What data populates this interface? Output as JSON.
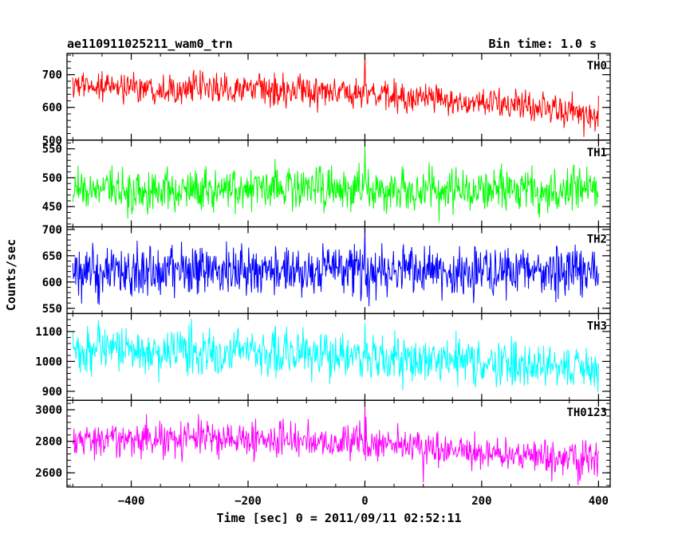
{
  "chart_data": {
    "type": "line",
    "title": "ae110911025211_wam0_trn",
    "bin_label": "Bin time: 1.0 s",
    "xlabel": "Time [sec] 0 = 2011/09/11 02:52:11",
    "ylabel": "Counts/sec",
    "xlim": [
      -510,
      420
    ],
    "xticks": [
      -400,
      -200,
      0,
      200,
      400
    ],
    "x_range": [
      -500,
      400
    ],
    "x_step": 1,
    "panels": [
      {
        "name": "TH0",
        "color": "#ff0000",
        "ylim": [
          500,
          765
        ],
        "yticks": [
          500,
          600,
          700
        ],
        "trend": [
          [
            -500,
            665
          ],
          [
            -200,
            655
          ],
          [
            0,
            640
          ],
          [
            200,
            615
          ],
          [
            400,
            580
          ]
        ],
        "noise_sigma": 23,
        "spikes": [
          [
            0,
            768
          ],
          [
            -100,
            670
          ],
          [
            375,
            510
          ]
        ]
      },
      {
        "name": "TH1",
        "color": "#00ff00",
        "ylim": [
          415,
          565
        ],
        "yticks": [
          450,
          500,
          550
        ],
        "trend": [
          [
            -500,
            478
          ],
          [
            0,
            480
          ],
          [
            400,
            478
          ]
        ],
        "noise_sigma": 19,
        "spikes": [
          [
            0,
            555
          ]
        ]
      },
      {
        "name": "TH2",
        "color": "#0000ff",
        "ylim": [
          540,
          705
        ],
        "yticks": [
          550,
          600,
          650,
          700
        ],
        "trend": [
          [
            -500,
            620
          ],
          [
            0,
            622
          ],
          [
            400,
            618
          ]
        ],
        "noise_sigma": 23,
        "spikes": [
          [
            0,
            705
          ]
        ]
      },
      {
        "name": "TH3",
        "color": "#00ffff",
        "ylim": [
          870,
          1160
        ],
        "yticks": [
          900,
          1000,
          1100
        ],
        "trend": [
          [
            -500,
            1040
          ],
          [
            -200,
            1035
          ],
          [
            0,
            1015
          ],
          [
            200,
            990
          ],
          [
            400,
            975
          ]
        ],
        "noise_sigma": 38,
        "spikes": [
          [
            0,
            1130
          ]
        ]
      },
      {
        "name": "TH0123",
        "color": "#ff00ff",
        "ylim": [
          2510,
          3060
        ],
        "yticks": [
          2600,
          2800,
          3000
        ],
        "trend": [
          [
            -500,
            2810
          ],
          [
            -200,
            2815
          ],
          [
            0,
            2790
          ],
          [
            200,
            2730
          ],
          [
            400,
            2680
          ]
        ],
        "noise_sigma": 55,
        "spikes": [
          [
            0,
            3050
          ],
          [
            100,
            2540
          ],
          [
            320,
            2545
          ]
        ]
      }
    ]
  }
}
